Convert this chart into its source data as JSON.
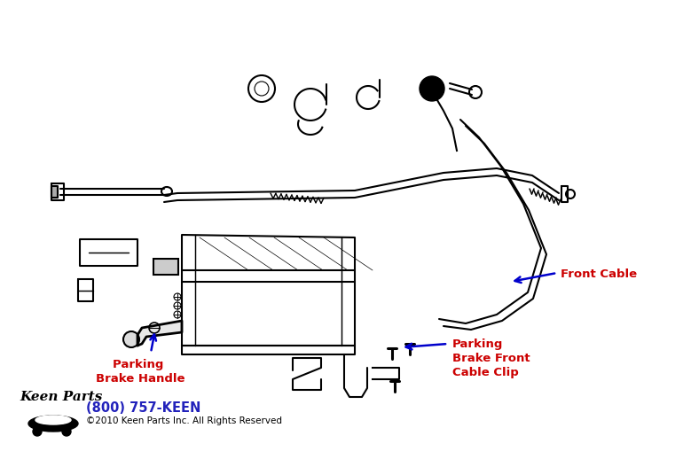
{
  "background_color": "#ffffff",
  "label_front_cable": "Front Cable",
  "label_parking_brake_handle": "Parking \nBrake Handle",
  "label_parking_brake_clip": "Parking\nBrake Front\nCable Clip",
  "label_color_red": "#cc0000",
  "arrow_color_blue": "#0000cc",
  "line_color": "#000000",
  "footer_phone": "(800) 757-KEEN",
  "footer_copyright": "©2010 Keen Parts Inc. All Rights Reserved",
  "footer_phone_color": "#2222bb",
  "footer_copyright_color": "#000000",
  "fig_width": 7.7,
  "fig_height": 5.18,
  "dpi": 100
}
